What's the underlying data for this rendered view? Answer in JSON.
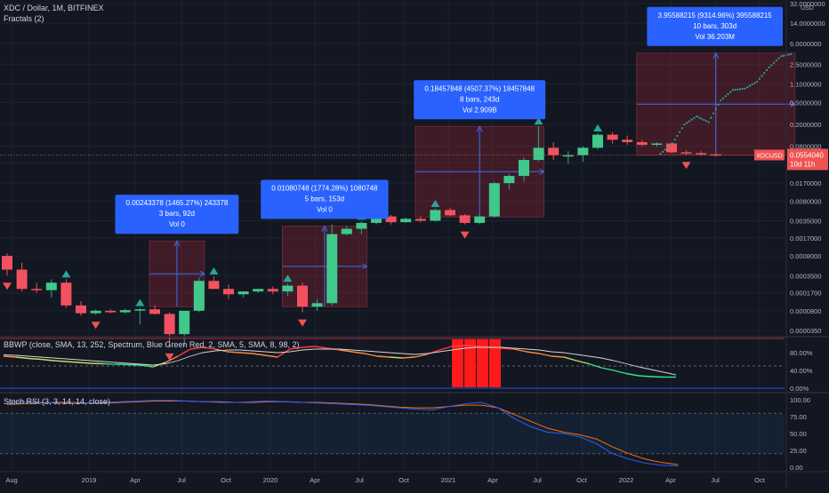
{
  "header": {
    "symbol_line": "XDC / Dollar, 1M, BITFINEX",
    "indicator_line": "Fractals (2)"
  },
  "chart_data": {
    "type": "candlestick",
    "price_scale": {
      "currency": "USD",
      "log": true,
      "ticks": [
        "32.0000000",
        "14.0000000",
        "6.0000000",
        "2.5000000",
        "1.1000000",
        "0.5000000",
        "0.2000000",
        "0.0800000",
        "0.0400000",
        "0.0170000",
        "0.0080000",
        "0.0035000",
        "0.0017000",
        "0.0008000",
        "0.0003500",
        "0.0001700",
        "0.0000800",
        "0.0000350"
      ]
    },
    "time_axis": [
      "Aug",
      "2019",
      "Apr",
      "Jul",
      "Oct",
      "2020",
      "Apr",
      "Jul",
      "Oct",
      "2021",
      "Apr",
      "Jul",
      "Oct",
      "2022",
      "Apr",
      "Jul",
      "Oct"
    ],
    "current_price": {
      "symbol": "XDCUSD",
      "value": "0.0554040",
      "countdown": "10d 11h"
    },
    "candles": [
      {
        "o": 0.0008,
        "h": 0.0009,
        "l": 0.00035,
        "c": 0.00045
      },
      {
        "o": 0.00045,
        "h": 0.0006,
        "l": 0.00018,
        "c": 0.0002
      },
      {
        "o": 0.0002,
        "h": 0.00026,
        "l": 0.00017,
        "c": 0.00019
      },
      {
        "o": 0.00019,
        "h": 0.0003,
        "l": 0.00014,
        "c": 0.00026
      },
      {
        "o": 0.00026,
        "h": 0.0003,
        "l": 9e-05,
        "c": 0.0001
      },
      {
        "o": 0.0001,
        "h": 0.00012,
        "l": 6.5e-05,
        "c": 7.2e-05
      },
      {
        "o": 7.2e-05,
        "h": 8.5e-05,
        "l": 6.8e-05,
        "c": 8e-05
      },
      {
        "o": 8e-05,
        "h": 8.5e-05,
        "l": 7.2e-05,
        "c": 7.5e-05
      },
      {
        "o": 7.5e-05,
        "h": 8.8e-05,
        "l": 7e-05,
        "c": 8.2e-05
      },
      {
        "o": 8.2e-05,
        "h": 9e-05,
        "l": 4.5e-05,
        "c": 8.5e-05
      },
      {
        "o": 8.5e-05,
        "h": 0.0001,
        "l": 6.8e-05,
        "c": 7e-05
      },
      {
        "o": 7e-05,
        "h": 7.5e-05,
        "l": 1.8e-05,
        "c": 3e-05
      },
      {
        "o": 3e-05,
        "h": 4e-05,
        "l": 1.8e-05,
        "c": 8e-05
      },
      {
        "o": 8e-05,
        "h": 0.00032,
        "l": 7.5e-05,
        "c": 0.00028
      },
      {
        "o": 0.00028,
        "h": 0.00034,
        "l": 0.0002,
        "c": 0.0002
      },
      {
        "o": 0.0002,
        "h": 0.00024,
        "l": 0.00013,
        "c": 0.00016
      },
      {
        "o": 0.00016,
        "h": 0.00018,
        "l": 0.00014,
        "c": 0.00018
      },
      {
        "o": 0.00018,
        "h": 0.0002,
        "l": 0.00017,
        "c": 0.0002
      },
      {
        "o": 0.0002,
        "h": 0.00022,
        "l": 0.00016,
        "c": 0.00018
      },
      {
        "o": 0.00018,
        "h": 0.00025,
        "l": 0.00015,
        "c": 0.00023
      },
      {
        "o": 0.00023,
        "h": 0.00026,
        "l": 7.5e-05,
        "c": 9.5e-05
      },
      {
        "o": 9.5e-05,
        "h": 0.00013,
        "l": 8e-05,
        "c": 0.00011
      },
      {
        "o": 0.00011,
        "h": 0.003,
        "l": 0.0001,
        "c": 0.002
      },
      {
        "o": 0.002,
        "h": 0.0028,
        "l": 0.0019,
        "c": 0.0025
      },
      {
        "o": 0.0025,
        "h": 0.0034,
        "l": 0.002,
        "c": 0.0032
      },
      {
        "o": 0.0032,
        "h": 0.0046,
        "l": 0.003,
        "c": 0.0042
      },
      {
        "o": 0.0042,
        "h": 0.0045,
        "l": 0.003,
        "c": 0.0033
      },
      {
        "o": 0.0033,
        "h": 0.004,
        "l": 0.0032,
        "c": 0.0038
      },
      {
        "o": 0.0038,
        "h": 0.0042,
        "l": 0.0033,
        "c": 0.0035
      },
      {
        "o": 0.0035,
        "h": 0.0058,
        "l": 0.0034,
        "c": 0.0055
      },
      {
        "o": 0.0055,
        "h": 0.006,
        "l": 0.0042,
        "c": 0.0044
      },
      {
        "o": 0.0044,
        "h": 0.0046,
        "l": 0.003,
        "c": 0.0032
      },
      {
        "o": 0.0032,
        "h": 0.0045,
        "l": 0.003,
        "c": 0.0042
      },
      {
        "o": 0.0042,
        "h": 0.018,
        "l": 0.004,
        "c": 0.017
      },
      {
        "o": 0.017,
        "h": 0.025,
        "l": 0.013,
        "c": 0.023
      },
      {
        "o": 0.023,
        "h": 0.05,
        "l": 0.018,
        "c": 0.045
      },
      {
        "o": 0.045,
        "h": 0.184,
        "l": 0.043,
        "c": 0.075
      },
      {
        "o": 0.075,
        "h": 0.095,
        "l": 0.045,
        "c": 0.055
      },
      {
        "o": 0.055,
        "h": 0.065,
        "l": 0.038,
        "c": 0.055
      },
      {
        "o": 0.055,
        "h": 0.08,
        "l": 0.042,
        "c": 0.075
      },
      {
        "o": 0.075,
        "h": 0.138,
        "l": 0.07,
        "c": 0.13
      },
      {
        "o": 0.13,
        "h": 0.145,
        "l": 0.09,
        "c": 0.105
      },
      {
        "o": 0.105,
        "h": 0.125,
        "l": 0.085,
        "c": 0.095
      },
      {
        "o": 0.095,
        "h": 0.105,
        "l": 0.08,
        "c": 0.085
      },
      {
        "o": 0.085,
        "h": 0.095,
        "l": 0.078,
        "c": 0.09
      },
      {
        "o": 0.09,
        "h": 0.093,
        "l": 0.06,
        "c": 0.062
      },
      {
        "o": 0.062,
        "h": 0.068,
        "l": 0.056,
        "c": 0.06
      },
      {
        "o": 0.06,
        "h": 0.065,
        "l": 0.054,
        "c": 0.057
      },
      {
        "o": 0.057,
        "h": 0.06,
        "l": 0.052,
        "c": 0.0554
      }
    ],
    "fractals": [
      {
        "i": 0,
        "type": "down"
      },
      {
        "i": 4,
        "type": "up"
      },
      {
        "i": 6,
        "type": "down"
      },
      {
        "i": 9,
        "type": "up"
      },
      {
        "i": 11,
        "type": "down"
      },
      {
        "i": 14,
        "type": "up"
      },
      {
        "i": 19,
        "type": "up"
      },
      {
        "i": 20,
        "type": "down"
      },
      {
        "i": 24,
        "type": "up"
      },
      {
        "i": 29,
        "type": "up"
      },
      {
        "i": 31,
        "type": "down"
      },
      {
        "i": 36,
        "type": "up"
      },
      {
        "i": 40,
        "type": "up"
      },
      {
        "i": 46,
        "type": "down"
      }
    ],
    "measure_boxes": [
      {
        "from_i": 10,
        "to_i": 13,
        "from_price": 9.5e-05,
        "to_price": 0.0015,
        "lines": [
          "0.00243378 (1465.27%) 243378",
          "3 bars, 92d",
          "Vol 0"
        ]
      },
      {
        "from_i": 19,
        "to_i": 24,
        "from_price": 9.5e-05,
        "to_price": 0.0028,
        "lines": [
          "0.01080748 (1774.28%) 1080748",
          "5 bars, 153d",
          "Vol 0"
        ]
      },
      {
        "from_i": 28,
        "to_i": 36,
        "from_price": 0.0041,
        "to_price": 0.184,
        "lines": [
          "0.18457848 (4507.37%) 18457848",
          "8 bars, 243d",
          "Vol 2.909B"
        ]
      },
      {
        "from_i": 43,
        "to_i": 53,
        "from_price": 0.055,
        "to_price": 4.0,
        "lines": [
          "3.95588215 (9314.96%) 395588215",
          "10 bars, 303d",
          "Vol 36.203M"
        ]
      }
    ],
    "projection": [
      0.058,
      0.09,
      0.2,
      0.28,
      0.22,
      0.55,
      0.85,
      0.9,
      1.2,
      2.2,
      3.5,
      3.9
    ],
    "bbwp": {
      "title": "BBWP (close, SMA, 13, 252, Spectrum, Blue Green Red, 2, SMA, 5, SMA, 8, 98, 2)",
      "ticks": [
        "80.00%",
        "40.00%",
        "0.00%"
      ],
      "values": [
        72,
        70,
        67,
        65,
        62,
        60,
        58,
        56,
        55,
        54,
        53,
        52,
        48,
        58,
        72,
        88,
        92,
        88,
        82,
        80,
        78,
        74,
        70,
        88,
        92,
        94,
        90,
        86,
        82,
        78,
        72,
        70,
        68,
        70,
        76,
        86,
        94,
        96,
        95,
        92,
        90,
        88,
        82,
        78,
        72,
        70,
        62,
        55,
        46,
        40,
        33,
        28,
        26,
        25,
        25
      ],
      "signal": [
        75,
        74,
        72,
        70,
        68,
        66,
        64,
        62,
        60,
        58,
        56,
        54,
        52,
        55,
        62,
        72,
        80,
        84,
        86,
        86,
        84,
        82,
        80,
        82,
        86,
        88,
        88,
        88,
        86,
        84,
        82,
        80,
        78,
        76,
        78,
        82,
        86,
        90,
        92,
        92,
        92,
        90,
        88,
        86,
        82,
        80,
        76,
        72,
        68,
        62,
        55,
        48,
        42,
        36,
        30
      ],
      "extreme_bars": [
        36,
        37,
        38,
        39
      ]
    },
    "stoch_rsi": {
      "title": "Stoch RSI (3, 3, 14, 14, close)",
      "ticks": [
        "100.00",
        "75.00",
        "50.00",
        "25.00",
        "0.00"
      ],
      "k": [
        96,
        97,
        96,
        95,
        94,
        95,
        96,
        97,
        98,
        99,
        99,
        98,
        97,
        96,
        96,
        97,
        98,
        97,
        96,
        95,
        94,
        93,
        92,
        90,
        88,
        86,
        85,
        90,
        94,
        96,
        88,
        72,
        60,
        52,
        50,
        45,
        35,
        20,
        12,
        6,
        3,
        2
      ],
      "d": [
        93,
        94,
        95,
        96,
        96,
        95,
        95,
        96,
        97,
        98,
        98,
        98,
        97,
        97,
        96,
        96,
        97,
        97,
        96,
        96,
        95,
        94,
        93,
        91,
        89,
        88,
        88,
        90,
        92,
        92,
        88,
        78,
        68,
        58,
        52,
        48,
        42,
        30,
        20,
        12,
        7,
        4
      ]
    }
  }
}
